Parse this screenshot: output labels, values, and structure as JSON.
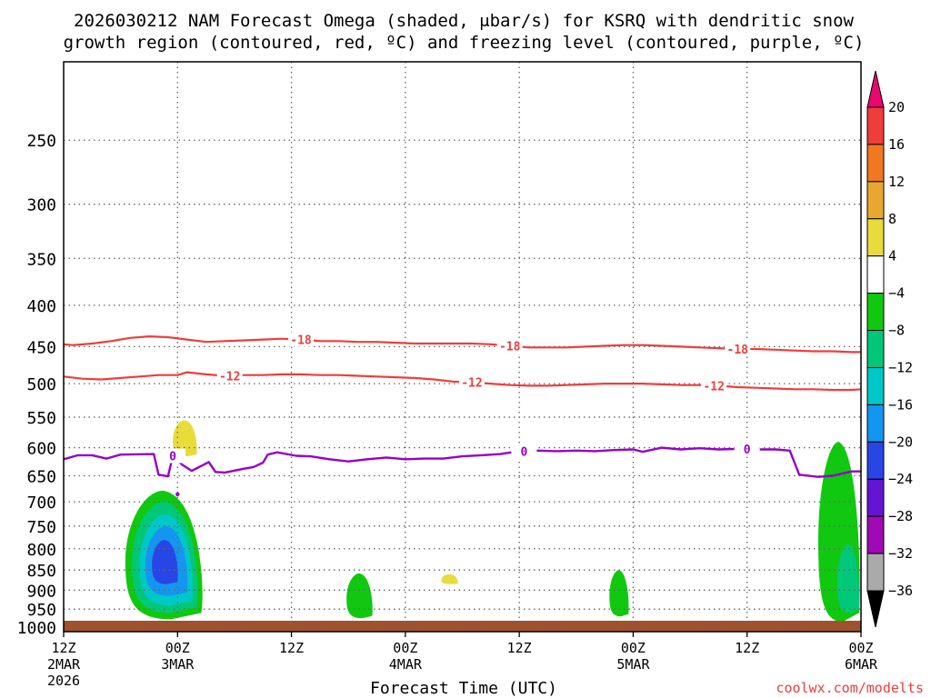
{
  "chart_data": {
    "type": "heatmap",
    "title_lines": [
      "2026030212 NAM Forecast Omega (shaded, μbar/s) for KSRQ with dendritic snow",
      "growth region (contoured, red, ºC) and freezing level (contoured, purple, ºC)"
    ],
    "xlabel": "Forecast Time (UTC)",
    "watermark": "coolwx.com/modelts",
    "x_ticks": [
      {
        "hour": 0,
        "l1": "12Z",
        "l2": "2MAR",
        "l3": "2026"
      },
      {
        "hour": 12,
        "l1": "00Z",
        "l2": "3MAR",
        "l3": ""
      },
      {
        "hour": 24,
        "l1": "12Z",
        "l2": "",
        "l3": ""
      },
      {
        "hour": 36,
        "l1": "00Z",
        "l2": "4MAR",
        "l3": ""
      },
      {
        "hour": 48,
        "l1": "12Z",
        "l2": "",
        "l3": ""
      },
      {
        "hour": 60,
        "l1": "00Z",
        "l2": "5MAR",
        "l3": ""
      },
      {
        "hour": 72,
        "l1": "12Z",
        "l2": "",
        "l3": ""
      },
      {
        "hour": 84,
        "l1": "00Z",
        "l2": "6MAR",
        "l3": ""
      }
    ],
    "x_range_hours": [
      0,
      84
    ],
    "y_ticks": [
      "250",
      "300",
      "350",
      "400",
      "450",
      "500",
      "550",
      "600",
      "650",
      "700",
      "750",
      "800",
      "850",
      "900",
      "950",
      "1000"
    ],
    "y_range_hpa": [
      200,
      1013
    ],
    "y_scale": "log-pressure",
    "colorbar": {
      "labels": [
        "20",
        "16",
        "12",
        "8",
        "4",
        "−4",
        "−8",
        "−12",
        "−16",
        "−20",
        "−24",
        "−28",
        "−32",
        "−36"
      ],
      "colors": [
        "#e8086f",
        "#f03c3c",
        "#f07820",
        "#e8a830",
        "#e8dc3c",
        "#ffffff",
        "#10c810",
        "#00c878",
        "#00c8c8",
        "#1496f0",
        "#2846e6",
        "#6414d2",
        "#a00ab4",
        "#aaaaaa",
        "#000000"
      ]
    },
    "contours": {
      "minus18": {
        "label": "-18",
        "color": "#f03c3c",
        "points": [
          [
            0,
            447
          ],
          [
            1,
            448
          ],
          [
            3,
            446
          ],
          [
            5,
            443
          ],
          [
            7,
            439
          ],
          [
            9,
            437
          ],
          [
            11,
            438
          ],
          [
            13,
            441
          ],
          [
            15,
            444
          ],
          [
            17,
            443
          ],
          [
            19,
            442
          ],
          [
            21,
            441
          ],
          [
            23,
            440
          ],
          [
            25,
            441
          ],
          [
            27,
            443
          ],
          [
            29,
            443
          ],
          [
            31,
            444
          ],
          [
            33,
            444
          ],
          [
            35,
            445
          ],
          [
            37,
            446
          ],
          [
            39,
            446
          ],
          [
            41,
            446
          ],
          [
            43,
            446
          ],
          [
            45,
            447
          ],
          [
            47,
            449
          ],
          [
            49,
            451
          ],
          [
            51,
            451
          ],
          [
            53,
            451
          ],
          [
            55,
            450
          ],
          [
            57,
            449
          ],
          [
            59,
            448
          ],
          [
            61,
            448
          ],
          [
            63,
            449
          ],
          [
            65,
            450
          ],
          [
            67,
            451
          ],
          [
            69,
            452
          ],
          [
            71,
            453
          ],
          [
            73,
            453
          ],
          [
            75,
            454
          ],
          [
            77,
            455
          ],
          [
            79,
            456
          ],
          [
            81,
            456
          ],
          [
            83,
            457
          ],
          [
            84,
            457
          ]
        ],
        "labels_at": [
          25,
          47,
          71
        ]
      },
      "minus12": {
        "label": "-12",
        "color": "#f03c3c",
        "points": [
          [
            0,
            490
          ],
          [
            2,
            493
          ],
          [
            4,
            494
          ],
          [
            6,
            492
          ],
          [
            8,
            490
          ],
          [
            10,
            488
          ],
          [
            12,
            488
          ],
          [
            13,
            484
          ],
          [
            15,
            487
          ],
          [
            17,
            489
          ],
          [
            19,
            488
          ],
          [
            21,
            488
          ],
          [
            23,
            487
          ],
          [
            25,
            487
          ],
          [
            27,
            488
          ],
          [
            29,
            488
          ],
          [
            31,
            489
          ],
          [
            33,
            490
          ],
          [
            35,
            491
          ],
          [
            37,
            492
          ],
          [
            39,
            494
          ],
          [
            41,
            497
          ],
          [
            43,
            498
          ],
          [
            45,
            500
          ],
          [
            47,
            502
          ],
          [
            49,
            503
          ],
          [
            51,
            503
          ],
          [
            53,
            502
          ],
          [
            55,
            501
          ],
          [
            57,
            500
          ],
          [
            59,
            500
          ],
          [
            61,
            500
          ],
          [
            63,
            501
          ],
          [
            65,
            502
          ],
          [
            67,
            502
          ],
          [
            69,
            503
          ],
          [
            71,
            505
          ],
          [
            73,
            506
          ],
          [
            75,
            507
          ],
          [
            77,
            508
          ],
          [
            79,
            508
          ],
          [
            81,
            509
          ],
          [
            83,
            509
          ],
          [
            84,
            508
          ]
        ],
        "labels_at": [
          17.5,
          43,
          68.5
        ]
      },
      "freezing": {
        "label": "0",
        "color": "#9600c8",
        "points": [
          [
            0,
            620
          ],
          [
            1.5,
            613
          ],
          [
            3,
            613
          ],
          [
            4.5,
            619
          ],
          [
            6,
            612
          ],
          [
            9.5,
            611
          ],
          [
            10,
            648
          ],
          [
            11,
            651
          ],
          [
            11.5,
            614
          ],
          [
            12.5,
            630
          ],
          [
            13.5,
            641
          ],
          [
            15.3,
            625
          ],
          [
            16,
            643
          ],
          [
            17,
            644
          ],
          [
            19,
            637
          ],
          [
            20,
            634
          ],
          [
            21,
            626
          ],
          [
            21.5,
            612
          ],
          [
            22.5,
            608
          ],
          [
            24.5,
            614
          ],
          [
            26,
            615
          ],
          [
            28,
            620
          ],
          [
            30,
            624
          ],
          [
            32,
            620
          ],
          [
            34,
            617
          ],
          [
            36,
            620
          ],
          [
            38,
            619
          ],
          [
            40,
            619
          ],
          [
            42,
            615
          ],
          [
            44,
            613
          ],
          [
            46,
            611
          ],
          [
            48,
            606
          ],
          [
            50,
            605
          ],
          [
            52,
            606
          ],
          [
            54,
            605
          ],
          [
            56,
            606
          ],
          [
            58,
            604
          ],
          [
            60,
            603
          ],
          [
            61,
            607
          ],
          [
            63,
            600
          ],
          [
            65,
            603
          ],
          [
            67,
            601
          ],
          [
            69,
            603
          ],
          [
            71,
            602
          ],
          [
            73,
            603
          ],
          [
            75,
            603
          ],
          [
            76.5,
            605
          ],
          [
            77.5,
            648
          ],
          [
            79.5,
            652
          ],
          [
            81,
            650
          ],
          [
            83,
            642
          ],
          [
            84,
            642
          ]
        ],
        "labels_at": [
          11.5,
          48.5,
          72
        ],
        "dot_at": [
          12,
          685
        ]
      }
    },
    "omega_cells": [
      {
        "t0": 6.5,
        "t1": 14.5,
        "p0": 678,
        "p1": 978,
        "value": -6
      },
      {
        "t0": 7.2,
        "t1": 14,
        "p0": 700,
        "p1": 960,
        "value": -10
      },
      {
        "t0": 8,
        "t1": 13.5,
        "p0": 725,
        "p1": 940,
        "value": -14
      },
      {
        "t0": 8.6,
        "t1": 13,
        "p0": 750,
        "p1": 915,
        "value": -18
      },
      {
        "t0": 9.3,
        "t1": 12,
        "p0": 780,
        "p1": 885,
        "value": -22
      },
      {
        "t0": 11.5,
        "t1": 14,
        "p0": 555,
        "p1": 615,
        "value": 6
      },
      {
        "t0": 29.8,
        "t1": 32.5,
        "p0": 858,
        "p1": 975,
        "value": -6
      },
      {
        "t0": 39.8,
        "t1": 41.5,
        "p0": 860,
        "p1": 885,
        "value": 6
      },
      {
        "t0": 57.5,
        "t1": 59.5,
        "p0": 850,
        "p1": 970,
        "value": -6
      },
      {
        "t0": 79.5,
        "t1": 83.8,
        "p0": 590,
        "p1": 985,
        "value": -6
      },
      {
        "t0": 81.5,
        "t1": 83.8,
        "p0": 790,
        "p1": 960,
        "value": -10
      }
    ]
  }
}
